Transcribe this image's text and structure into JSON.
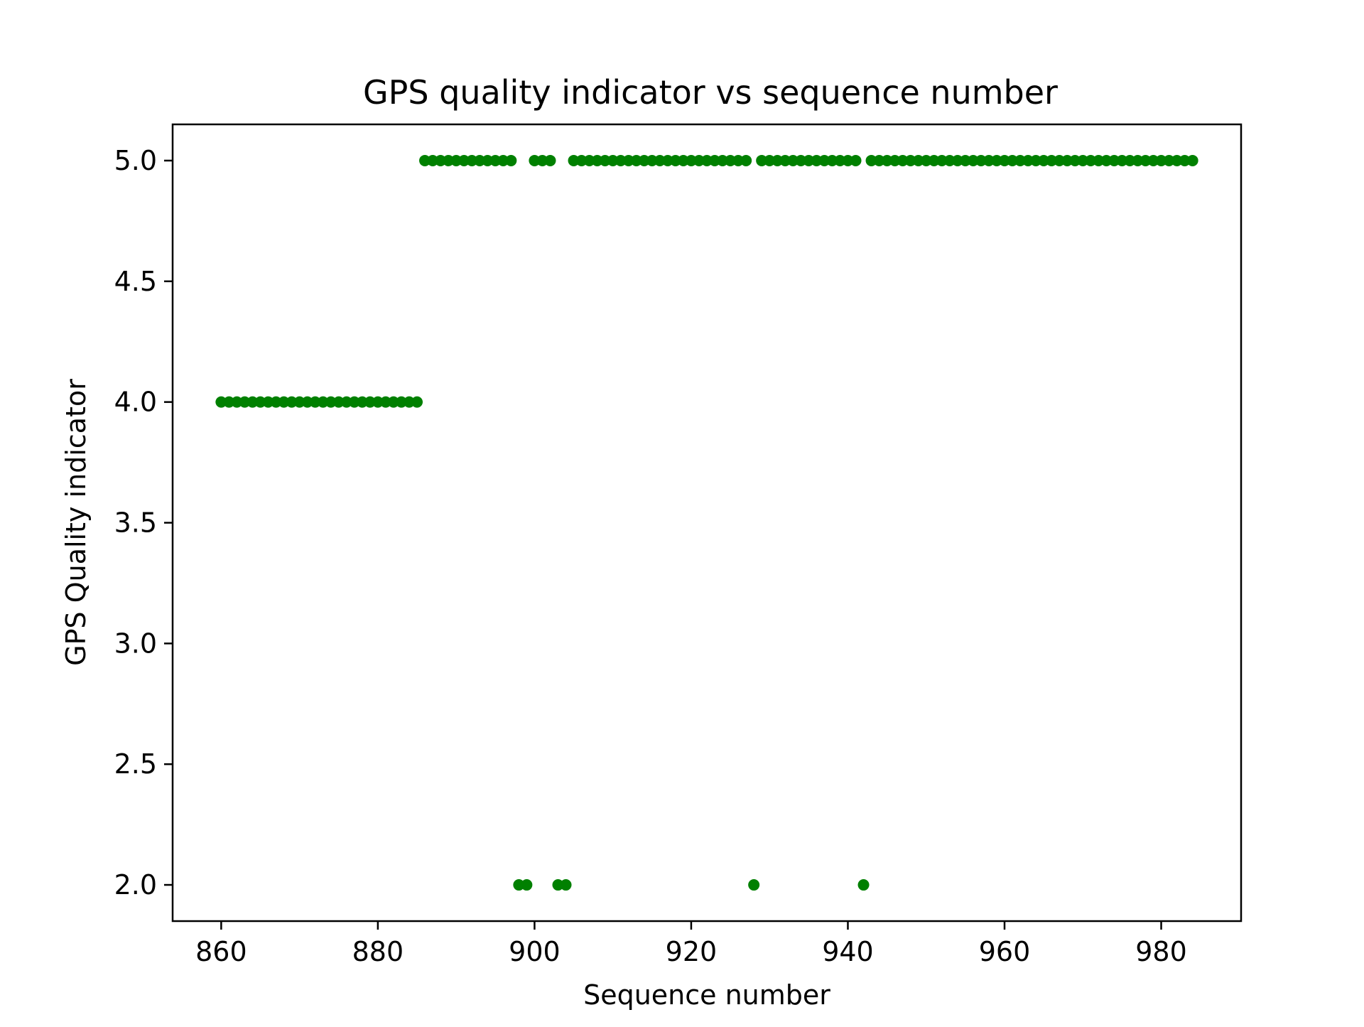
{
  "chart_data": {
    "type": "scatter",
    "title": "GPS quality indicator vs sequence number",
    "xlabel": "Sequence number",
    "ylabel": "GPS Quality indicator",
    "xlim": [
      853.8,
      990.2
    ],
    "ylim": [
      1.85,
      5.15
    ],
    "xticks": [
      860,
      880,
      900,
      920,
      940,
      960,
      980
    ],
    "yticks": [
      2.0,
      2.5,
      3.0,
      3.5,
      4.0,
      4.5,
      5.0
    ],
    "xtick_labels": [
      "860",
      "880",
      "900",
      "920",
      "940",
      "960",
      "980"
    ],
    "ytick_labels": [
      "2.0",
      "2.5",
      "3.0",
      "3.5",
      "4.0",
      "4.5",
      "5.0"
    ],
    "grid": false,
    "marker_color": "#008000",
    "series": [
      {
        "points": [
          [
            860,
            4
          ],
          [
            861,
            4
          ],
          [
            862,
            4
          ],
          [
            863,
            4
          ],
          [
            864,
            4
          ],
          [
            865,
            4
          ],
          [
            866,
            4
          ],
          [
            867,
            4
          ],
          [
            868,
            4
          ],
          [
            869,
            4
          ],
          [
            870,
            4
          ],
          [
            871,
            4
          ],
          [
            872,
            4
          ],
          [
            873,
            4
          ],
          [
            874,
            4
          ],
          [
            875,
            4
          ],
          [
            876,
            4
          ],
          [
            877,
            4
          ],
          [
            878,
            4
          ],
          [
            879,
            4
          ],
          [
            880,
            4
          ],
          [
            881,
            4
          ],
          [
            882,
            4
          ],
          [
            883,
            4
          ],
          [
            884,
            4
          ],
          [
            885,
            4
          ],
          [
            886,
            5
          ],
          [
            887,
            5
          ],
          [
            888,
            5
          ],
          [
            889,
            5
          ],
          [
            890,
            5
          ],
          [
            891,
            5
          ],
          [
            892,
            5
          ],
          [
            893,
            5
          ],
          [
            894,
            5
          ],
          [
            895,
            5
          ],
          [
            896,
            5
          ],
          [
            897,
            5
          ],
          [
            898,
            2
          ],
          [
            899,
            2
          ],
          [
            900,
            5
          ],
          [
            901,
            5
          ],
          [
            902,
            5
          ],
          [
            903,
            2
          ],
          [
            904,
            2
          ],
          [
            905,
            5
          ],
          [
            906,
            5
          ],
          [
            907,
            5
          ],
          [
            908,
            5
          ],
          [
            909,
            5
          ],
          [
            910,
            5
          ],
          [
            911,
            5
          ],
          [
            912,
            5
          ],
          [
            913,
            5
          ],
          [
            914,
            5
          ],
          [
            915,
            5
          ],
          [
            916,
            5
          ],
          [
            917,
            5
          ],
          [
            918,
            5
          ],
          [
            919,
            5
          ],
          [
            920,
            5
          ],
          [
            921,
            5
          ],
          [
            922,
            5
          ],
          [
            923,
            5
          ],
          [
            924,
            5
          ],
          [
            925,
            5
          ],
          [
            926,
            5
          ],
          [
            927,
            5
          ],
          [
            928,
            2
          ],
          [
            929,
            5
          ],
          [
            930,
            5
          ],
          [
            931,
            5
          ],
          [
            932,
            5
          ],
          [
            933,
            5
          ],
          [
            934,
            5
          ],
          [
            935,
            5
          ],
          [
            936,
            5
          ],
          [
            937,
            5
          ],
          [
            938,
            5
          ],
          [
            939,
            5
          ],
          [
            940,
            5
          ],
          [
            941,
            5
          ],
          [
            942,
            2
          ],
          [
            943,
            5
          ],
          [
            944,
            5
          ],
          [
            945,
            5
          ],
          [
            946,
            5
          ],
          [
            947,
            5
          ],
          [
            948,
            5
          ],
          [
            949,
            5
          ],
          [
            950,
            5
          ],
          [
            951,
            5
          ],
          [
            952,
            5
          ],
          [
            953,
            5
          ],
          [
            954,
            5
          ],
          [
            955,
            5
          ],
          [
            956,
            5
          ],
          [
            957,
            5
          ],
          [
            958,
            5
          ],
          [
            959,
            5
          ],
          [
            960,
            5
          ],
          [
            961,
            5
          ],
          [
            962,
            5
          ],
          [
            963,
            5
          ],
          [
            964,
            5
          ],
          [
            965,
            5
          ],
          [
            966,
            5
          ],
          [
            967,
            5
          ],
          [
            968,
            5
          ],
          [
            969,
            5
          ],
          [
            970,
            5
          ],
          [
            971,
            5
          ],
          [
            972,
            5
          ],
          [
            973,
            5
          ],
          [
            974,
            5
          ],
          [
            975,
            5
          ],
          [
            976,
            5
          ],
          [
            977,
            5
          ],
          [
            978,
            5
          ],
          [
            979,
            5
          ],
          [
            980,
            5
          ],
          [
            981,
            5
          ],
          [
            982,
            5
          ],
          [
            983,
            5
          ],
          [
            984,
            5
          ]
        ]
      }
    ]
  }
}
